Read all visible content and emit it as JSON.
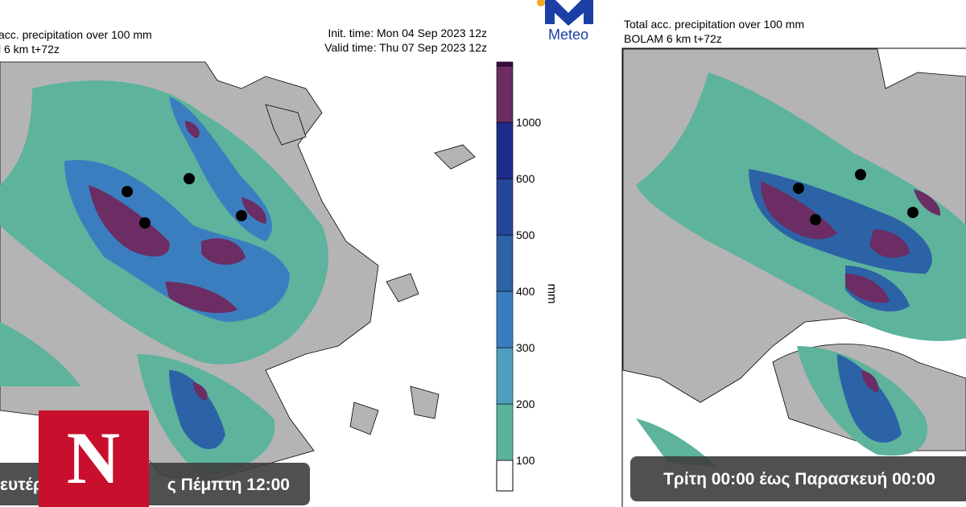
{
  "logo": {
    "text": "Meteo"
  },
  "left_panel": {
    "title": "acc. precipitation over 100 mm",
    "subtitle": "l 6 km t+72z",
    "init_time": "Init. time: Mon 04 Sep 2023 12z",
    "valid_time": "Thu 07 Sep 2023 12z",
    "valid_label": "Valid time:",
    "caption_start": "ευτέρ",
    "caption_end": "ς Πέμπτη 12:00"
  },
  "colorbar": {
    "unit": "mm",
    "labels": [
      "100",
      "200",
      "300",
      "400",
      "500",
      "600",
      "1000"
    ],
    "colors": [
      "#5db39c",
      "#4f9dbf",
      "#3b7ec0",
      "#2c62a6",
      "#25479a",
      "#1d2c8c",
      "#6b2d63",
      "#3a0c42"
    ]
  },
  "right_panel": {
    "title": "Total acc. precipitation over 100 mm",
    "subtitle": "BOLAM 6 km t+72z",
    "caption": "Τρίτη 00:00 έως Παρασκευή 00:00"
  },
  "badge": {
    "letter": "N"
  }
}
